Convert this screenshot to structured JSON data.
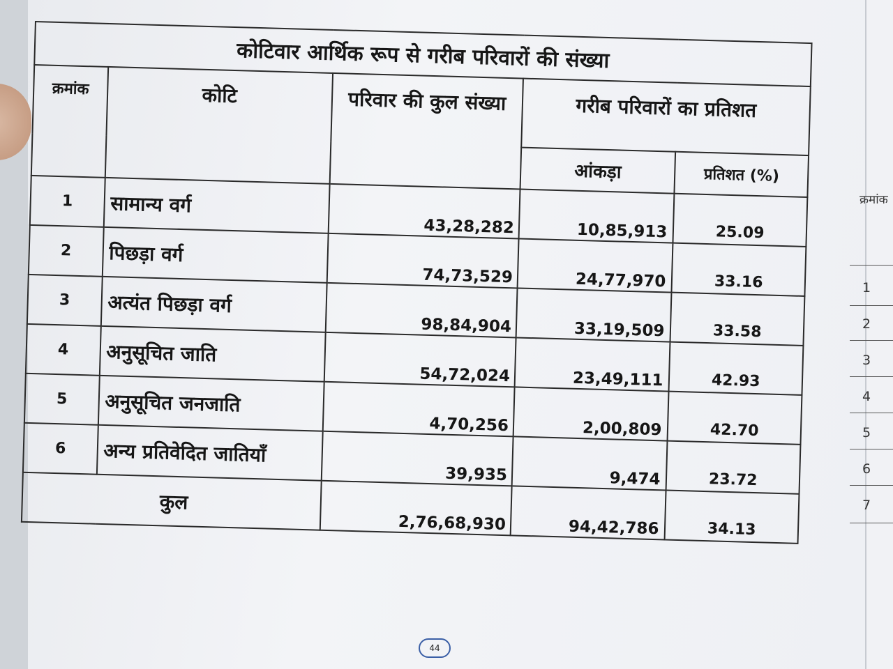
{
  "table": {
    "title": "कोटिवार आर्थिक रूप से गरीब परिवारों की संख्या",
    "headers": {
      "serial": "क्रमांक",
      "category": "कोटि",
      "total_families": "परिवार की कुल संख्या",
      "poor_percentage": "गरीब परिवारों का प्रतिशत",
      "count": "आंकड़ा",
      "percent": "प्रतिशत (%)"
    },
    "rows": [
      {
        "sn": "1",
        "category": "सामान्य वर्ग",
        "total": "43,28,282",
        "poor": "10,85,913",
        "pct": "25.09"
      },
      {
        "sn": "2",
        "category": "पिछड़ा वर्ग",
        "total": "74,73,529",
        "poor": "24,77,970",
        "pct": "33.16"
      },
      {
        "sn": "3",
        "category": "अत्यंत पिछड़ा वर्ग",
        "total": "98,84,904",
        "poor": "33,19,509",
        "pct": "33.58"
      },
      {
        "sn": "4",
        "category": "अनुसूचित जाति",
        "total": "54,72,024",
        "poor": "23,49,111",
        "pct": "42.93"
      },
      {
        "sn": "5",
        "category": "अनुसूचित जनजाति",
        "total": "4,70,256",
        "poor": "2,00,809",
        "pct": "42.70"
      },
      {
        "sn": "6",
        "category": "अन्य प्रतिवेदित जातियाँ",
        "total": "39,935",
        "poor": "9,474",
        "pct": "23.72"
      }
    ],
    "total": {
      "label": "कुल",
      "total": "2,76,68,930",
      "poor": "94,42,786",
      "pct": "34.13"
    }
  },
  "page_number": "44",
  "adjacent_page": {
    "header": "क्रमांक",
    "numbers": [
      "1",
      "2",
      "3",
      "4",
      "5",
      "6",
      "7"
    ]
  }
}
